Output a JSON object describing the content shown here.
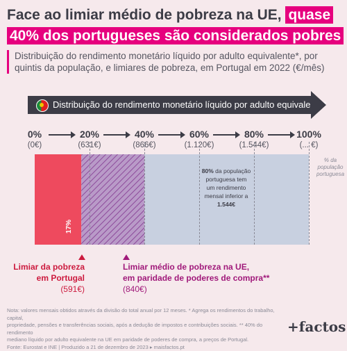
{
  "title": {
    "part1": "Face ao limiar médio de pobreza na UE,",
    "part2": "quase",
    "part3": "40% dos portugueses são considerados pobres"
  },
  "subtitle": "Distribuição do rendimento monetário líquido por adulto equivalente*, por quintis da população, e limiares de pobreza, em Portugal em 2022 (€/mês)",
  "arrow_label": "Distribuição do rendimento monetário líquido por adulto equivalente*",
  "quintiles": [
    {
      "pct": "0%",
      "value": "(0€)"
    },
    {
      "pct": "20%",
      "value": "(631€)"
    },
    {
      "pct": "40%",
      "value": "(866€)"
    },
    {
      "pct": "60%",
      "value": "(1.120€)"
    },
    {
      "pct": "80%",
      "value": "(1.544€)"
    },
    {
      "pct": "100%",
      "value": "(... €)"
    }
  ],
  "side_note": "% da população portuguesa",
  "annotation": {
    "bold1": "80%",
    "text1": " da população portuguesa tem um rendimento mensal inferior a ",
    "bold2": "1.544€"
  },
  "portugal_pct_label": "17%",
  "thresholds": {
    "portugal": {
      "line1": "Limiar da pobreza",
      "line2": "em Portugal",
      "value": "(591€)"
    },
    "eu": {
      "line1": "Limiar médio de pobreza na UE,",
      "line2": "em paridade de poderes de compra**",
      "value": "(840€)"
    }
  },
  "footnote": {
    "line1": "Nota: valores mensais obtidos através da divisão do total anual por 12 meses. * Agrega os rendimentos do trabalho, capital,",
    "line2": "propriedade, pensões e transferências sociais, após a dedução de impostos e contribuições sociais. ** 40% do rendimento",
    "line3": "mediano líquido por adulto equivalente na UE em paridade de poderes de compra, a preços de Portugal.",
    "line4": "Fonte: Eurostat e INE | Produzido a 21 de dezembro de 2023 ▸ maisfactos.pt"
  },
  "logo": "+factos",
  "colors": {
    "accent": "#e6007e",
    "poverty_red": "#ee4a5e",
    "hatch_purple": "#8c4a9a",
    "band_blue": "#c8d0e0",
    "dark": "#3c3c46",
    "background": "#f6e9ec"
  },
  "chart_data": {
    "type": "bar",
    "orientation": "horizontal-stacked",
    "xlim": [
      0,
      100
    ],
    "quintile_percent": [
      0,
      20,
      40,
      60,
      80,
      100
    ],
    "quintile_income_eur_month": [
      0,
      631,
      866,
      1120,
      1544,
      null
    ],
    "segments": [
      {
        "name": "Limiar da pobreza em Portugal",
        "from_pct": 0,
        "to_pct": 17,
        "threshold_eur": 591
      },
      {
        "name": "Limiar médio de pobreza na UE, em paridade de poderes de compra**",
        "from_pct": 17,
        "to_pct": 40,
        "threshold_eur": 840
      },
      {
        "name": "",
        "from_pct": 40,
        "to_pct": 100
      }
    ]
  }
}
